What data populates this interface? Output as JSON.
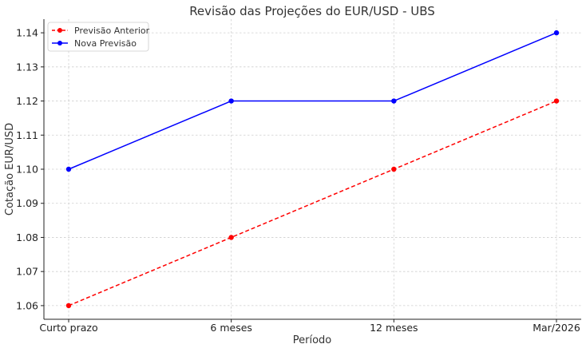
{
  "chart_data": {
    "type": "line",
    "title": "Revisão das Projeções do EUR/USD - UBS",
    "xlabel": "Período",
    "ylabel": "Cotação EUR/USD",
    "categories": [
      "Curto prazo",
      "6 meses",
      "12 meses",
      "Mar/2026"
    ],
    "ylim": [
      1.056,
      1.144
    ],
    "yticks": [
      "1.06",
      "1.07",
      "1.08",
      "1.09",
      "1.10",
      "1.11",
      "1.12",
      "1.13",
      "1.14"
    ],
    "grid": true,
    "legend_position": "top-left",
    "series": [
      {
        "name": "Previsão Anterior",
        "values": [
          1.06,
          1.08,
          1.1,
          1.12
        ],
        "color": "#ff0000",
        "line_style": "dashed"
      },
      {
        "name": "Nova Previsão",
        "values": [
          1.1,
          1.12,
          1.12,
          1.14
        ],
        "color": "#0000ff",
        "line_style": "solid"
      }
    ]
  }
}
